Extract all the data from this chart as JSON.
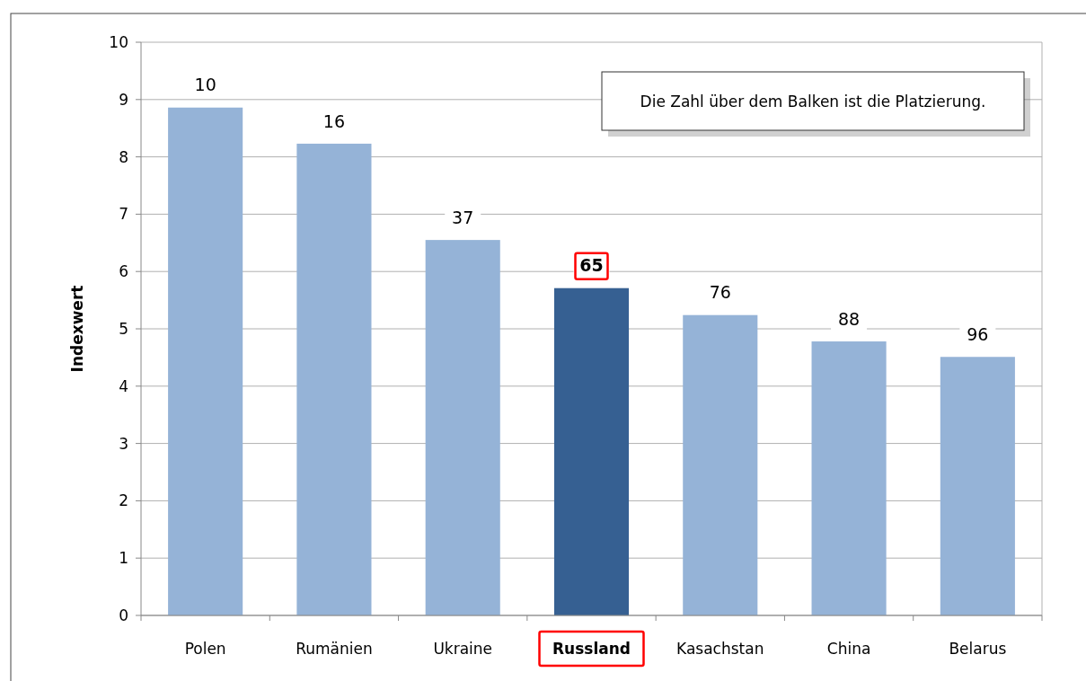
{
  "chart_data": {
    "type": "bar",
    "ylabel": "Indexwert",
    "categories": [
      "Polen",
      "Rumänien",
      "Ukraine",
      "Russland",
      "Kasachstan",
      "China",
      "Belarus"
    ],
    "values": [
      8.86,
      8.23,
      6.55,
      5.71,
      5.24,
      4.78,
      4.51
    ],
    "colors": [
      "#95b3d7",
      "#95b3d7",
      "#95b3d7",
      "#366092",
      "#95b3d7",
      "#95b3d7",
      "#95b3d7"
    ],
    "ylim": [
      0,
      10
    ],
    "yticks": [
      0,
      1,
      2,
      3,
      4,
      5,
      6,
      7,
      8,
      9,
      10
    ],
    "grid": "y",
    "annotations": [
      "Die Zahl über dem Balken ist die Platzierung.",
      {
        "text": "10",
        "x": "Polen",
        "y": 8.86
      },
      {
        "text": "16",
        "x": "Rumänien",
        "y": 8.23
      },
      {
        "text": "37",
        "x": "Ukraine",
        "y": 6.55
      },
      {
        "text": "65",
        "x": "Russland",
        "y": 5.71
      },
      {
        "text": "76",
        "x": "Kasachstan",
        "y": 5.24
      },
      {
        "text": "88",
        "x": "China",
        "y": 4.78
      },
      {
        "text": "96",
        "x": "Belarus",
        "y": 4.51
      }
    ]
  }
}
